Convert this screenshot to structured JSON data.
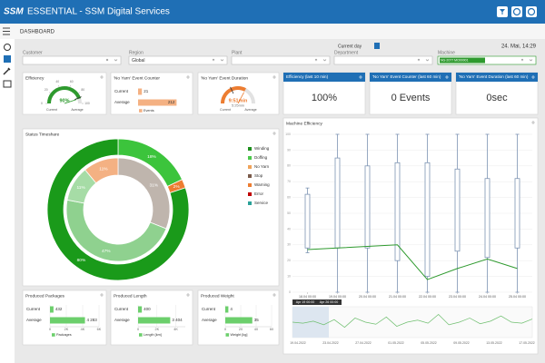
{
  "header": {
    "logo": "SSM",
    "title": "ESSENTIAL - SSM Digital Services"
  },
  "breadcrumb": "DASHBOARD",
  "current_day": {
    "label": "Current day",
    "datetime": "24. Mai, 14:29"
  },
  "filters": [
    {
      "label": "Customer"
    },
    {
      "label": "Region",
      "value": "Global"
    },
    {
      "label": "Plant"
    },
    {
      "label": "Department"
    },
    {
      "label": "Machine",
      "value": "NG-2077 MO00001"
    }
  ],
  "efficiency_gauge": {
    "type": "gauge",
    "title": "Efficiency",
    "value": 90,
    "value_label": "90%",
    "average": 88,
    "ylim": [
      0,
      100
    ],
    "yticks": [
      0,
      20,
      40,
      60,
      80,
      100
    ],
    "labels": [
      "Current",
      "Average"
    ],
    "color": "#2e9a2e"
  },
  "event_counter": {
    "type": "hbar",
    "title": "'No Yarn' Event Counter",
    "categories": [
      "Current",
      "Average"
    ],
    "values": [
      21,
      212
    ],
    "xlim": [
      0,
      260
    ],
    "color": "#f4b183",
    "legend": "Events"
  },
  "event_duration": {
    "type": "gauge",
    "title": "'No Yarn' Event Duration",
    "value": 9.85,
    "value_label": "9:51min",
    "average": 5.4167,
    "average_label": "5:25min",
    "ylim": [
      0,
      15
    ],
    "labels": [
      "Current",
      "Average"
    ],
    "color": "#ed7d31"
  },
  "kpis": [
    {
      "title": "Efficiency (last 10 min)",
      "value": "100%"
    },
    {
      "title": "'No Yarn' Event Counter (last 60 min)",
      "value": "0 Events"
    },
    {
      "title": "'No Yarn' Event Duration (last 60 min)",
      "value": "0sec"
    }
  ],
  "status_timeshare": {
    "type": "donut",
    "title": "Status Timeshare",
    "legend": [
      {
        "name": "Winding",
        "color": "#1e8f1e"
      },
      {
        "name": "Doffing",
        "color": "#4cc84c"
      },
      {
        "name": "No Yarn",
        "color": "#f0a35a"
      },
      {
        "name": "Stop",
        "color": "#7a5a4a"
      },
      {
        "name": "Warning",
        "color": "#ed7d31"
      },
      {
        "name": "Error",
        "color": "#c00000"
      },
      {
        "name": "Service",
        "color": "#2aa198"
      }
    ],
    "rings": [
      {
        "values": [
          18,
          2,
          80
        ],
        "value_labels": [
          "18%",
          "2%",
          "80%"
        ],
        "colors": [
          "#3cc43c",
          "#ed7d31",
          "#1a9a1a"
        ]
      },
      {
        "values": [
          31,
          47,
          11,
          11
        ],
        "value_labels": [
          "31%",
          "47%",
          "11%",
          "11%"
        ],
        "colors": [
          "#bfb5ad",
          "#8fd18f",
          "#a6dca6",
          "#f4b183"
        ]
      }
    ]
  },
  "machine_efficiency": {
    "type": "boxplot",
    "title": "Machine Efficiency",
    "categories": [
      "18.04 00:00",
      "19.04 00:00",
      "20.04 00:00",
      "21.04 00:00",
      "22.04 00:00",
      "23.04 00:00",
      "24.04 00:00",
      "25.04 00:00"
    ],
    "low": [
      25,
      0,
      0,
      0,
      0,
      0,
      0,
      0
    ],
    "q1": [
      28,
      28,
      28,
      20,
      10,
      26,
      22,
      28
    ],
    "q3": [
      62,
      85,
      80,
      82,
      82,
      78,
      72,
      72
    ],
    "high": [
      66,
      100,
      100,
      100,
      100,
      100,
      100,
      100
    ],
    "line": {
      "color": "#2e9a2e",
      "values": [
        27,
        28,
        29,
        30,
        8,
        15,
        21,
        15
      ]
    },
    "ylim": [
      0,
      100
    ],
    "yticks": [
      0,
      10,
      20,
      30,
      40,
      50,
      60,
      70,
      80,
      90,
      100
    ],
    "grid": true,
    "navigator": {
      "range_labels": [
        "Apr 19 00:00",
        "Apr 26 00:00"
      ],
      "labels": [
        "19.04.2022",
        "23.04.2022",
        "27.04.2022",
        "01.05.2022",
        "05.05.2022",
        "09.05.2022",
        "13.05.2022",
        "17.05.2022"
      ],
      "values": [
        30,
        28,
        32,
        25,
        35,
        20,
        38,
        30,
        26,
        40,
        22,
        30,
        34,
        28,
        45,
        25,
        30,
        38,
        27,
        32,
        42,
        30,
        28,
        36
      ],
      "ylim": [
        0,
        60
      ]
    }
  },
  "produced_packages": {
    "type": "hbar",
    "title": "Produced Packages",
    "categories": [
      "Current",
      "Average"
    ],
    "values": [
      432,
      4283
    ],
    "value_labels": [
      "432",
      "4 283"
    ],
    "xlim": [
      0,
      6000
    ],
    "xticks": [
      0,
      {
        "value": 2000,
        "label": "2K"
      },
      {
        "value": 4000,
        "label": "4K"
      },
      {
        "value": 6000,
        "label": "6K"
      }
    ],
    "color": "#6ccf6c",
    "legend": "Packages"
  },
  "produced_length": {
    "type": "hbar",
    "title": "Produced Length",
    "categories": [
      "Current",
      "Average"
    ],
    "values": [
      400,
      3404
    ],
    "value_labels": [
      "400",
      "3 404"
    ],
    "xlim": [
      0,
      5000
    ],
    "xticks": [
      0,
      {
        "value": 2000,
        "label": "2K"
      },
      {
        "value": 4000,
        "label": "4K"
      }
    ],
    "color": "#6ccf6c",
    "legend": "Length [km]"
  },
  "produced_weight": {
    "type": "hbar",
    "title": "Produced Weight",
    "categories": [
      "Current",
      "Average"
    ],
    "values": [
      4,
      35
    ],
    "xlim": [
      0,
      60
    ],
    "xticks": [
      0,
      20,
      40,
      60
    ],
    "color": "#6ccf6c",
    "legend": "Weight [kg]"
  }
}
